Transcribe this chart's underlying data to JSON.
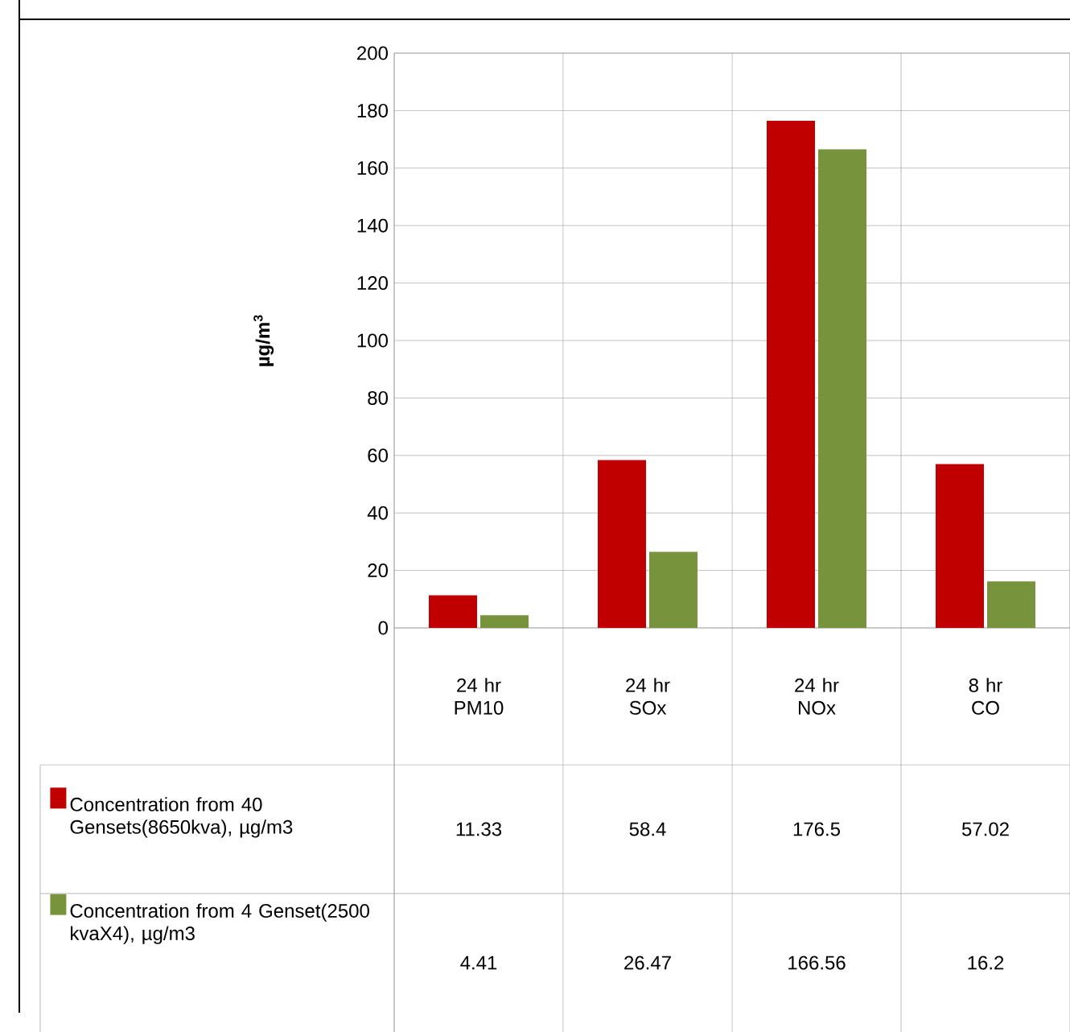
{
  "chart_data": {
    "type": "bar",
    "ylabel": "µg/m$^{3}$",
    "categories": [
      "24 hr PM10",
      "24 hr SOx",
      "24 hr NOx",
      "8 hr CO"
    ],
    "series": [
      {
        "name": "Concentration from 40 Gensets(8650kva), µg/m3",
        "color": "#c00000",
        "values": [
          11.33,
          58.4,
          176.5,
          57.02
        ]
      },
      {
        "name": "Concentration from 4 Genset(2500 kvaX4), µg/m3",
        "color": "#77933c",
        "values": [
          4.41,
          26.47,
          166.56,
          16.2
        ]
      }
    ],
    "ylim": [
      0,
      200
    ],
    "yticks": [
      0,
      20,
      40,
      60,
      80,
      100,
      120,
      140,
      160,
      180,
      200
    ],
    "grid": "y",
    "legend": "bottom",
    "data_labels": true
  }
}
